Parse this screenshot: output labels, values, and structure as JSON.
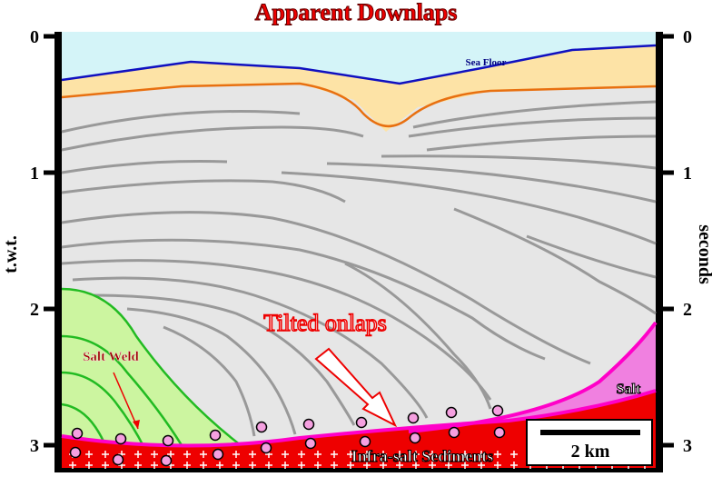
{
  "header": {
    "title": "Apparent Downlaps"
  },
  "axes": {
    "left_label": "t.w.t.",
    "right_label": "seconds",
    "ticks": [
      0,
      1,
      2,
      3
    ]
  },
  "labels": {
    "sea_floor": "Sea Floor",
    "tilted_onlaps": "Tilted onlaps",
    "salt_weld": "Salt Weld",
    "salt": "Salt",
    "infra_salt": "Infra-salt Sediments",
    "scale": "2 km"
  }
}
